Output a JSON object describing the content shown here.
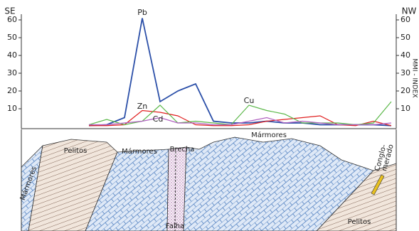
{
  "chart_data": {
    "type": "line",
    "y2label": "MMI - INDEX",
    "annotations": [
      "SE",
      "NW",
      "Mármores",
      "Pelitos",
      "Mármores",
      "Brecha",
      "Mármores",
      "Conglo-",
      "merado",
      "Pelitos",
      "Falha"
    ],
    "categories": [
      null,
      null,
      null,
      null,
      null,
      null,
      null,
      null,
      null,
      null,
      null,
      null,
      null,
      null,
      null,
      null,
      null,
      null
    ],
    "series": [
      {
        "name": "Pb",
        "color": "#2b4fa8",
        "values": [
          0.5,
          1,
          5,
          61,
          14,
          20,
          24,
          3,
          2,
          2,
          3,
          2,
          2,
          1,
          1,
          1,
          1,
          0.5
        ]
      },
      {
        "name": "Zn",
        "color": "#e02020",
        "values": [
          0.5,
          0.5,
          1,
          9,
          8,
          6,
          1,
          0.5,
          0.5,
          1,
          3,
          4,
          5,
          6,
          1,
          0.5,
          3,
          0.5
        ]
      },
      {
        "name": "Cu",
        "color": "#5cb84a",
        "values": [
          1,
          4,
          1,
          3,
          12,
          2,
          3,
          2,
          1,
          12,
          9,
          7,
          2,
          2,
          2,
          1,
          2,
          14
        ]
      },
      {
        "name": "Cd",
        "color": "#b060c0",
        "values": [
          1,
          1,
          2,
          3,
          5,
          2,
          2,
          1,
          1,
          3,
          5,
          2,
          3,
          2,
          1,
          1,
          1,
          2
        ]
      }
    ],
    "ylim": [
      0,
      60
    ],
    "yticks": [
      10,
      20,
      30,
      40,
      50,
      60
    ],
    "y2lim": [
      0,
      60
    ],
    "y2ticks": [
      10,
      20,
      30,
      40,
      50,
      60
    ]
  }
}
